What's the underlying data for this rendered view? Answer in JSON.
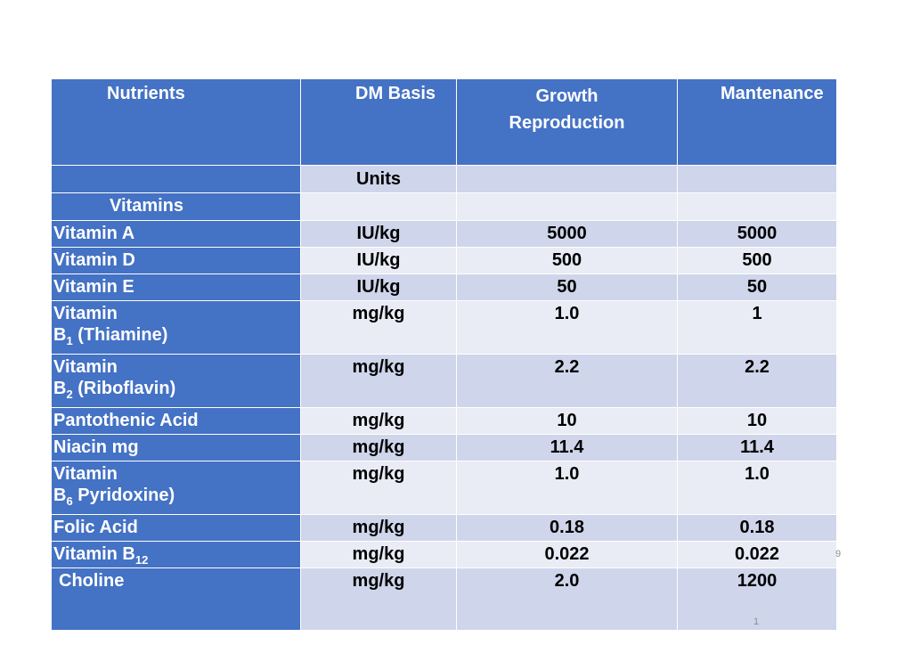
{
  "table": {
    "header": {
      "nutrients": "Nutrients",
      "dm_basis": "DM Basis",
      "growth_line1": "Growth",
      "growth_line2": "Reproduction",
      "maintenance": "Mantenance"
    },
    "units_row": {
      "label": "Units"
    },
    "vitamins_row": {
      "label": "Vitamins"
    },
    "rows": [
      {
        "name": "Vitamin A",
        "unit": "IU/kg",
        "growth": "5000",
        "maint": "5000"
      },
      {
        "name": "Vitamin D",
        "unit": "IU/kg",
        "growth": "500",
        "maint": "500"
      },
      {
        "name": "Vitamin E",
        "unit": "IU/kg",
        "growth": "50",
        "maint": "50"
      },
      {
        "name_line1": "Vitamin",
        "name_b": "B",
        "name_sub": "1",
        "name_rest": " (Thiamine)",
        "unit": "mg/kg",
        "growth": "1.0",
        "maint": "1"
      },
      {
        "name_line1": "Vitamin",
        "name_b": "B",
        "name_sub": "2",
        "name_rest": " (Riboflavin)",
        "unit": "mg/kg",
        "growth": "2.2",
        "maint": "2.2"
      },
      {
        "name": "Pantothenic Acid",
        "unit": "mg/kg",
        "growth": "10",
        "maint": "10"
      },
      {
        "name": "Niacin mg",
        "unit": "mg/kg",
        "growth": "11.4",
        "maint": "11.4"
      },
      {
        "name_line1": "Vitamin",
        "name_b": "B",
        "name_sub": "6",
        "name_rest": " Pyridoxine)",
        "unit": "mg/kg",
        "growth": "1.0",
        "maint": "1.0"
      },
      {
        "name": "Folic Acid",
        "unit": "mg/kg",
        "growth": "0.18",
        "maint": "0.18"
      },
      {
        "name_main": "Vitamin B",
        "name_sub": "12",
        "unit": "mg/kg",
        "growth": "0.022",
        "maint": "0.022"
      },
      {
        "name": "Choline",
        "unit": "mg/kg",
        "growth": "2.0",
        "maint": "1200"
      }
    ]
  },
  "page_numbers": {
    "side": "9",
    "bottom": "1"
  },
  "colors": {
    "header_blue": "#4472c4",
    "row_dark": "#cfd5ea",
    "row_light": "#e9ebf5"
  }
}
